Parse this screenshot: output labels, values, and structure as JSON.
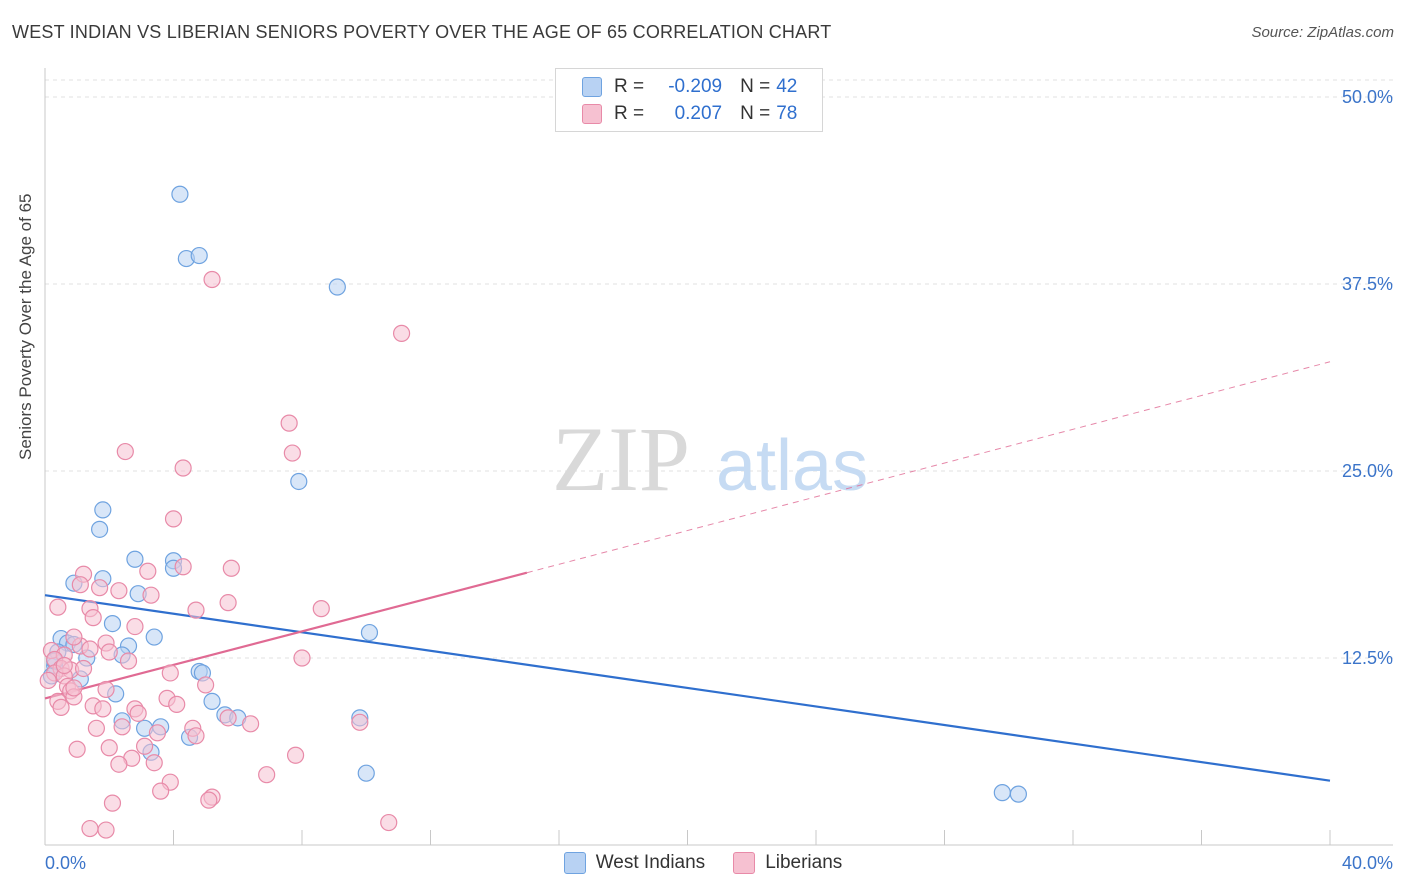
{
  "header": {
    "title": "WEST INDIAN VS LIBERIAN SENIORS POVERTY OVER THE AGE OF 65 CORRELATION CHART",
    "source": "Source: ZipAtlas.com"
  },
  "watermark": {
    "zip": "ZIP",
    "atlas": "atlas"
  },
  "legend": {
    "rows": [
      {
        "r_label": "R =",
        "r_value": "-0.209",
        "n_label": "N =",
        "n_value": "42",
        "color": "#6fa3e0",
        "fill": "#b8d2f3"
      },
      {
        "r_label": "R =",
        "r_value": "0.207",
        "n_label": "N =",
        "n_value": "78",
        "color": "#e88aa8",
        "fill": "#f6c1d1"
      }
    ]
  },
  "bottom_legend": {
    "items": [
      "West Indians",
      "Liberians"
    ]
  },
  "chart_data": {
    "type": "scatter",
    "title": "WEST INDIAN VS LIBERIAN SENIORS POVERTY OVER THE AGE OF 65 CORRELATION CHART",
    "ylabel": "Seniors Poverty Over the Age of 65",
    "xlabel": "",
    "xlim": [
      0,
      40
    ],
    "ylim": [
      0,
      50
    ],
    "x_tick_labels": [
      "0.0%",
      "40.0%"
    ],
    "y_tick_labels": [
      "12.5%",
      "25.0%",
      "37.5%",
      "50.0%"
    ],
    "y_ticks": [
      12.5,
      25,
      37.5,
      50
    ],
    "grid": true,
    "legend_placement": "top-center",
    "series": [
      {
        "name": "West Indians",
        "color": "#6fa3e0",
        "fill": "#b8d2f3",
        "line_color": "#2f6fce",
        "trend": {
          "x": [
            0,
            40
          ],
          "y": [
            16.7,
            4.3
          ],
          "style": "solid"
        },
        "points": [
          [
            4.2,
            43.5
          ],
          [
            4.4,
            39.2
          ],
          [
            4.8,
            39.4
          ],
          [
            9.1,
            37.3
          ],
          [
            7.9,
            24.3
          ],
          [
            1.8,
            22.4
          ],
          [
            1.7,
            21.1
          ],
          [
            2.8,
            19.1
          ],
          [
            4.0,
            19.0
          ],
          [
            4.0,
            18.5
          ],
          [
            1.8,
            17.8
          ],
          [
            0.9,
            17.5
          ],
          [
            2.9,
            16.8
          ],
          [
            2.1,
            14.8
          ],
          [
            3.4,
            13.9
          ],
          [
            10.1,
            14.2
          ],
          [
            0.5,
            13.8
          ],
          [
            0.7,
            13.5
          ],
          [
            0.9,
            13.4
          ],
          [
            2.6,
            13.3
          ],
          [
            0.4,
            12.9
          ],
          [
            2.4,
            12.7
          ],
          [
            1.3,
            12.5
          ],
          [
            0.3,
            12.0
          ],
          [
            0.2,
            11.3
          ],
          [
            1.1,
            11.1
          ],
          [
            4.8,
            11.6
          ],
          [
            4.9,
            11.5
          ],
          [
            2.2,
            10.1
          ],
          [
            5.2,
            9.6
          ],
          [
            5.6,
            8.7
          ],
          [
            6.0,
            8.5
          ],
          [
            2.4,
            8.3
          ],
          [
            3.1,
            7.8
          ],
          [
            3.6,
            7.9
          ],
          [
            9.8,
            8.5
          ],
          [
            4.5,
            7.2
          ],
          [
            3.3,
            6.2
          ],
          [
            10.0,
            4.8
          ],
          [
            29.8,
            3.5
          ],
          [
            30.3,
            3.4
          ],
          [
            0.3,
            12.3
          ]
        ]
      },
      {
        "name": "Liberians",
        "color": "#e88aa8",
        "fill": "#f6c1d1",
        "line_color": "#e06a93",
        "trend": {
          "x": [
            0,
            15
          ],
          "y": [
            9.8,
            18.2
          ],
          "style": "solid",
          "extension": {
            "x": [
              15,
              40
            ],
            "y": [
              18.2,
              32.3
            ],
            "style": "dashed"
          }
        },
        "points": [
          [
            5.2,
            37.8
          ],
          [
            11.1,
            34.2
          ],
          [
            7.6,
            28.2
          ],
          [
            2.5,
            26.3
          ],
          [
            7.7,
            26.2
          ],
          [
            4.3,
            25.2
          ],
          [
            4.0,
            21.8
          ],
          [
            1.2,
            18.1
          ],
          [
            4.3,
            18.6
          ],
          [
            5.8,
            18.5
          ],
          [
            1.1,
            17.4
          ],
          [
            2.3,
            17.0
          ],
          [
            3.3,
            16.7
          ],
          [
            5.7,
            16.2
          ],
          [
            0.4,
            15.9
          ],
          [
            4.7,
            15.7
          ],
          [
            8.6,
            15.8
          ],
          [
            1.4,
            15.8
          ],
          [
            1.5,
            15.2
          ],
          [
            2.8,
            14.6
          ],
          [
            1.9,
            13.5
          ],
          [
            1.1,
            13.3
          ],
          [
            0.2,
            13.0
          ],
          [
            1.4,
            13.1
          ],
          [
            0.6,
            12.7
          ],
          [
            2.6,
            12.3
          ],
          [
            0.3,
            12.4
          ],
          [
            8.0,
            12.5
          ],
          [
            0.5,
            11.8
          ],
          [
            0.8,
            11.7
          ],
          [
            3.9,
            11.5
          ],
          [
            0.3,
            11.5
          ],
          [
            0.6,
            11.3
          ],
          [
            0.1,
            11.0
          ],
          [
            5.0,
            10.7
          ],
          [
            0.7,
            10.6
          ],
          [
            0.8,
            10.3
          ],
          [
            1.9,
            10.4
          ],
          [
            0.9,
            9.9
          ],
          [
            3.8,
            9.8
          ],
          [
            0.4,
            9.6
          ],
          [
            4.1,
            9.4
          ],
          [
            0.5,
            9.2
          ],
          [
            1.5,
            9.3
          ],
          [
            1.8,
            9.1
          ],
          [
            2.8,
            9.1
          ],
          [
            2.9,
            8.8
          ],
          [
            5.7,
            8.5
          ],
          [
            9.8,
            8.2
          ],
          [
            6.4,
            8.1
          ],
          [
            1.6,
            7.8
          ],
          [
            2.4,
            7.9
          ],
          [
            4.6,
            7.8
          ],
          [
            3.5,
            7.5
          ],
          [
            4.7,
            7.3
          ],
          [
            2.0,
            6.5
          ],
          [
            1.0,
            6.4
          ],
          [
            3.1,
            6.6
          ],
          [
            7.8,
            6.0
          ],
          [
            2.7,
            5.8
          ],
          [
            2.3,
            5.4
          ],
          [
            3.4,
            5.5
          ],
          [
            6.9,
            4.7
          ],
          [
            3.9,
            4.2
          ],
          [
            3.6,
            3.6
          ],
          [
            5.2,
            3.2
          ],
          [
            5.1,
            3.0
          ],
          [
            2.1,
            2.8
          ],
          [
            10.7,
            1.5
          ],
          [
            1.4,
            1.1
          ],
          [
            1.9,
            1.0
          ],
          [
            0.9,
            13.9
          ],
          [
            1.7,
            17.2
          ],
          [
            3.2,
            18.3
          ],
          [
            0.6,
            12.0
          ],
          [
            1.2,
            11.8
          ],
          [
            0.9,
            10.5
          ],
          [
            2.0,
            12.9
          ]
        ]
      }
    ]
  }
}
